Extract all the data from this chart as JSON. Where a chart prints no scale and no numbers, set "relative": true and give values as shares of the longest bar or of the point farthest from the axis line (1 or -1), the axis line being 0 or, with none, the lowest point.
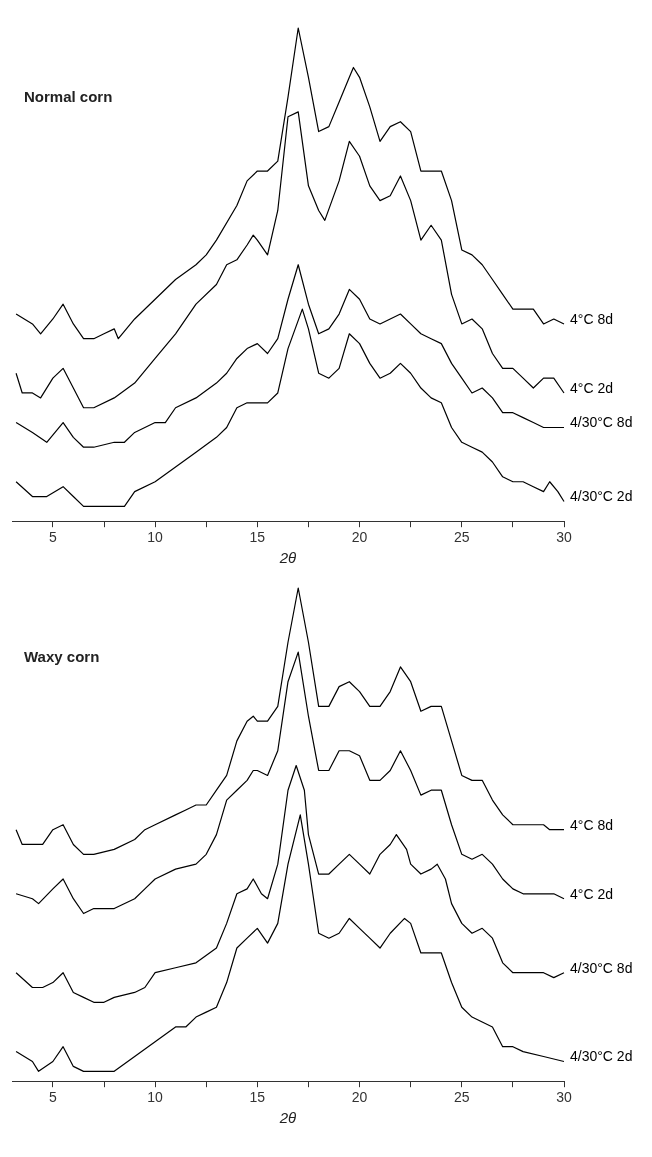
{
  "chart_data": [
    {
      "type": "line",
      "title": "Normal corn",
      "xlabel": "2θ",
      "relative": true,
      "xlim": [
        3,
        30
      ],
      "xticks": [
        5,
        {
          "value": 7.5,
          "label": null
        },
        10,
        {
          "value": 12.5,
          "label": null
        },
        15,
        {
          "value": 17.5,
          "label": null
        },
        20,
        {
          "value": 22.5,
          "label": null
        },
        25,
        {
          "value": 27.5,
          "label": null
        },
        30
      ],
      "grid": false,
      "legend": false,
      "marker": "none",
      "series": [
        {
          "name": "4°C 8d",
          "color": "#000000",
          "x": [
            3.2,
            4,
            4.4,
            5,
            5.5,
            6,
            6.5,
            7,
            7.5,
            8,
            8.2,
            9,
            10,
            11,
            12,
            12.5,
            13,
            14,
            14.5,
            15,
            15.5,
            16,
            16.5,
            17,
            17.5,
            18,
            18.5,
            19,
            19.5,
            19.7,
            20,
            20.5,
            21,
            21.5,
            22,
            22.5,
            23,
            23.5,
            24,
            24.5,
            25,
            25.5,
            26,
            26.5,
            27,
            27.5,
            28,
            28.5,
            29,
            29.5,
            30
          ],
          "values": [
            0.42,
            0.4,
            0.38,
            0.41,
            0.44,
            0.4,
            0.37,
            0.37,
            0.38,
            0.39,
            0.37,
            0.41,
            0.45,
            0.49,
            0.52,
            0.54,
            0.57,
            0.64,
            0.69,
            0.71,
            0.71,
            0.73,
            0.86,
            1,
            0.9,
            0.79,
            0.8,
            0.85,
            0.9,
            0.92,
            0.9,
            0.84,
            0.77,
            0.8,
            0.81,
            0.79,
            0.71,
            0.71,
            0.71,
            0.65,
            0.55,
            0.54,
            0.52,
            0.49,
            0.46,
            0.43,
            0.43,
            0.43,
            0.4,
            0.41,
            0.4
          ]
        },
        {
          "name": "4°C 2d",
          "color": "#000000",
          "x": [
            3.2,
            3.5,
            4,
            4.4,
            5,
            5.5,
            6,
            6.5,
            7,
            8,
            9,
            10,
            11,
            12,
            13,
            13.5,
            14,
            14.5,
            14.8,
            15,
            15.5,
            16,
            16.5,
            17,
            17.5,
            18,
            18.3,
            19,
            19.5,
            20,
            20.5,
            21,
            21.5,
            22,
            22.5,
            23,
            23.5,
            24,
            24.5,
            25,
            25.5,
            26,
            26.5,
            27,
            27.5,
            28,
            28.5,
            29,
            29.5,
            30
          ],
          "values": [
            0.3,
            0.26,
            0.26,
            0.25,
            0.29,
            0.31,
            0.27,
            0.23,
            0.23,
            0.25,
            0.28,
            0.33,
            0.38,
            0.44,
            0.48,
            0.52,
            0.53,
            0.56,
            0.58,
            0.57,
            0.54,
            0.63,
            0.82,
            0.83,
            0.68,
            0.63,
            0.61,
            0.69,
            0.77,
            0.74,
            0.68,
            0.65,
            0.66,
            0.7,
            0.65,
            0.57,
            0.6,
            0.57,
            0.46,
            0.4,
            0.41,
            0.39,
            0.34,
            0.31,
            0.31,
            0.29,
            0.27,
            0.29,
            0.29,
            0.26
          ]
        },
        {
          "name": "4/30°C 8d",
          "color": "#000000",
          "x": [
            3.2,
            4,
            4.7,
            5.5,
            6,
            6.5,
            7,
            8,
            8.5,
            9,
            10,
            10.5,
            11,
            12,
            13,
            13.5,
            14,
            14.5,
            15,
            15.5,
            16,
            16.5,
            17,
            17.5,
            18,
            18.5,
            19,
            19.5,
            20,
            20.5,
            21,
            21.5,
            22,
            22.5,
            23,
            23.5,
            24,
            24.5,
            25,
            25.5,
            26,
            26.5,
            27,
            27.5,
            28,
            28.5,
            29,
            29.5,
            30
          ],
          "values": [
            0.2,
            0.18,
            0.16,
            0.2,
            0.17,
            0.15,
            0.15,
            0.16,
            0.16,
            0.18,
            0.2,
            0.2,
            0.23,
            0.25,
            0.28,
            0.3,
            0.33,
            0.35,
            0.36,
            0.34,
            0.37,
            0.45,
            0.52,
            0.44,
            0.38,
            0.39,
            0.42,
            0.47,
            0.45,
            0.41,
            0.4,
            0.41,
            0.42,
            0.4,
            0.38,
            0.37,
            0.36,
            0.32,
            0.29,
            0.26,
            0.27,
            0.25,
            0.22,
            0.22,
            0.21,
            0.2,
            0.19,
            0.19,
            0.19
          ]
        },
        {
          "name": "4/30°C 2d",
          "color": "#000000",
          "x": [
            3.2,
            4,
            4.7,
            5.5,
            6,
            6.5,
            7,
            8,
            8.5,
            9,
            10,
            11,
            12,
            13,
            13.5,
            14,
            14.5,
            15,
            15.5,
            16,
            16.5,
            17.2,
            17.5,
            18,
            18.5,
            19,
            19.5,
            20,
            20.5,
            21,
            21.5,
            22,
            22.5,
            23,
            23.5,
            24,
            24.5,
            25,
            25.5,
            26,
            26.5,
            27,
            27.5,
            28,
            28.5,
            29,
            29.3,
            29.7,
            30
          ],
          "values": [
            0.08,
            0.05,
            0.05,
            0.07,
            0.05,
            0.03,
            0.03,
            0.03,
            0.03,
            0.06,
            0.08,
            0.11,
            0.14,
            0.17,
            0.19,
            0.23,
            0.24,
            0.24,
            0.24,
            0.26,
            0.35,
            0.43,
            0.39,
            0.3,
            0.29,
            0.31,
            0.38,
            0.36,
            0.32,
            0.29,
            0.3,
            0.32,
            0.3,
            0.27,
            0.25,
            0.24,
            0.19,
            0.16,
            0.15,
            0.14,
            0.12,
            0.09,
            0.08,
            0.08,
            0.07,
            0.06,
            0.08,
            0.06,
            0.04
          ]
        }
      ]
    },
    {
      "type": "line",
      "title": "Waxy corn",
      "xlabel": "2θ",
      "relative": true,
      "xlim": [
        3,
        30
      ],
      "xticks": [
        5,
        {
          "value": 7.5,
          "label": null
        },
        10,
        {
          "value": 12.5,
          "label": null
        },
        15,
        {
          "value": 17.5,
          "label": null
        },
        20,
        {
          "value": 22.5,
          "label": null
        },
        25,
        {
          "value": 27.5,
          "label": null
        },
        30
      ],
      "grid": false,
      "legend": false,
      "marker": "none",
      "series": [
        {
          "name": "4°C 8d",
          "color": "#000000",
          "x": [
            3.2,
            3.5,
            4,
            4.5,
            5,
            5.5,
            6,
            6.5,
            7,
            8,
            9,
            9.5,
            10,
            11,
            11.5,
            12,
            12.5,
            13,
            13.5,
            14,
            14.5,
            14.8,
            15,
            15.5,
            16,
            16.5,
            17,
            17.5,
            18,
            18.5,
            19,
            19.5,
            20,
            20.5,
            21,
            21.5,
            22,
            22.5,
            23,
            23.5,
            24,
            24.5,
            25,
            25.5,
            26,
            26.5,
            27,
            27.5,
            28,
            28.5,
            29,
            29.3,
            30
          ],
          "values": [
            0.51,
            0.48,
            0.48,
            0.48,
            0.51,
            0.52,
            0.48,
            0.46,
            0.46,
            0.47,
            0.49,
            0.51,
            0.52,
            0.54,
            0.55,
            0.56,
            0.56,
            0.59,
            0.62,
            0.69,
            0.73,
            0.74,
            0.73,
            0.73,
            0.76,
            0.89,
            1,
            0.89,
            0.76,
            0.76,
            0.8,
            0.81,
            0.79,
            0.76,
            0.76,
            0.79,
            0.84,
            0.81,
            0.75,
            0.76,
            0.76,
            0.69,
            0.62,
            0.61,
            0.61,
            0.57,
            0.54,
            0.52,
            0.52,
            0.52,
            0.52,
            0.51,
            0.51
          ]
        },
        {
          "name": "4°C 2d",
          "color": "#000000",
          "x": [
            3.2,
            4,
            4.3,
            5,
            5.5,
            6,
            6.5,
            7,
            8,
            9,
            9.5,
            10,
            11,
            12,
            12.5,
            13,
            13.5,
            14,
            14.5,
            14.8,
            15,
            15.5,
            16,
            16.5,
            17,
            17.5,
            18,
            18.5,
            19,
            19.5,
            20,
            20.5,
            21,
            21.5,
            22,
            22.5,
            23,
            23.5,
            24,
            24.5,
            25,
            25.5,
            26,
            26.5,
            27,
            27.5,
            28,
            28.5,
            29,
            29.5,
            30
          ],
          "values": [
            0.38,
            0.37,
            0.36,
            0.39,
            0.41,
            0.37,
            0.34,
            0.35,
            0.35,
            0.37,
            0.39,
            0.41,
            0.43,
            0.44,
            0.46,
            0.5,
            0.57,
            0.59,
            0.61,
            0.63,
            0.63,
            0.62,
            0.67,
            0.81,
            0.87,
            0.74,
            0.63,
            0.63,
            0.67,
            0.67,
            0.66,
            0.61,
            0.61,
            0.63,
            0.67,
            0.63,
            0.58,
            0.59,
            0.59,
            0.52,
            0.46,
            0.45,
            0.46,
            0.44,
            0.41,
            0.39,
            0.38,
            0.38,
            0.38,
            0.38,
            0.37
          ]
        },
        {
          "name": "4/30°C 8d",
          "color": "#000000",
          "x": [
            3.2,
            4,
            4.5,
            5,
            5.5,
            6,
            6.5,
            7,
            7.5,
            8,
            9,
            9.5,
            10,
            11,
            12,
            13,
            13.5,
            14,
            14.5,
            14.8,
            15.2,
            15.5,
            16,
            16.5,
            16.9,
            17.3,
            17.5,
            18,
            18.5,
            19,
            19.5,
            20,
            20.5,
            21,
            21.5,
            21.8,
            22.3,
            22.5,
            23,
            23.5,
            23.8,
            24.2,
            24.5,
            25,
            25.5,
            26,
            26.5,
            27,
            27.5,
            28,
            28.5,
            29,
            29.5,
            30
          ],
          "values": [
            0.22,
            0.19,
            0.19,
            0.2,
            0.22,
            0.18,
            0.17,
            0.16,
            0.16,
            0.17,
            0.18,
            0.19,
            0.22,
            0.23,
            0.24,
            0.27,
            0.32,
            0.38,
            0.39,
            0.41,
            0.38,
            0.37,
            0.44,
            0.59,
            0.64,
            0.59,
            0.5,
            0.42,
            0.42,
            0.44,
            0.46,
            0.44,
            0.42,
            0.46,
            0.48,
            0.5,
            0.47,
            0.44,
            0.42,
            0.43,
            0.44,
            0.41,
            0.36,
            0.32,
            0.3,
            0.31,
            0.29,
            0.24,
            0.22,
            0.22,
            0.22,
            0.22,
            0.21,
            0.22
          ]
        },
        {
          "name": "4/30°C 2d",
          "color": "#000000",
          "x": [
            3.2,
            4,
            4.3,
            5,
            5.5,
            6,
            6.5,
            7,
            7.5,
            8,
            9,
            10,
            11,
            11.5,
            12,
            12.5,
            13,
            13.5,
            14,
            14.5,
            15,
            15.5,
            16,
            16.5,
            17.1,
            17.5,
            18,
            18.5,
            19,
            19.5,
            20,
            20.5,
            21,
            21.5,
            22.2,
            22.5,
            23,
            23.5,
            24,
            24.5,
            25,
            25.5,
            26,
            26.5,
            27,
            27.5,
            28,
            29,
            30
          ],
          "values": [
            0.06,
            0.04,
            0.02,
            0.04,
            0.07,
            0.03,
            0.02,
            0.02,
            0.02,
            0.02,
            0.05,
            0.08,
            0.11,
            0.11,
            0.13,
            0.14,
            0.15,
            0.2,
            0.27,
            0.29,
            0.31,
            0.28,
            0.32,
            0.44,
            0.54,
            0.44,
            0.3,
            0.29,
            0.3,
            0.33,
            0.31,
            0.29,
            0.27,
            0.3,
            0.33,
            0.32,
            0.26,
            0.26,
            0.26,
            0.2,
            0.15,
            0.13,
            0.12,
            0.11,
            0.07,
            0.07,
            0.06,
            0.05,
            0.04
          ]
        }
      ]
    }
  ]
}
